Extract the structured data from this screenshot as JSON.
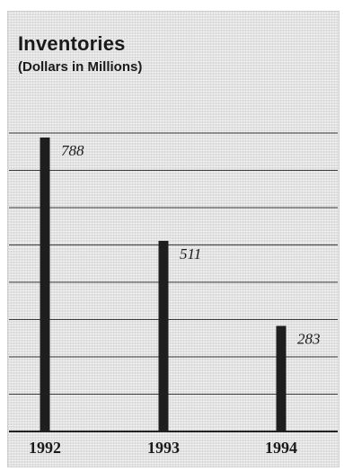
{
  "chart_data": {
    "type": "bar",
    "title": "Inventories",
    "subtitle": "(Dollars in Millions)",
    "categories": [
      "1992",
      "1993",
      "1994"
    ],
    "values": [
      788,
      511,
      283
    ],
    "value_labels": [
      "788",
      "511",
      "283"
    ],
    "xlabel": "",
    "ylabel": "",
    "ylim": [
      0,
      800
    ],
    "grid": true,
    "legend": "none"
  }
}
